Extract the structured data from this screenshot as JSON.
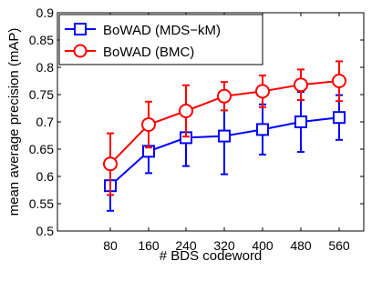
{
  "chart_data": {
    "type": "line",
    "title": "",
    "xlabel": "# BDS codeword",
    "ylabel": "mean average precision (mAP)",
    "categories": [
      "80",
      "160",
      "240",
      "320",
      "400",
      "480",
      "560"
    ],
    "ylim": [
      0.5,
      0.9
    ],
    "yticks": [
      "0.5",
      "0.55",
      "0.6",
      "0.65",
      "0.7",
      "0.75",
      "0.8",
      "0.85",
      "0.9"
    ],
    "grid": false,
    "legend_position": "top-left",
    "series": [
      {
        "name": "BoWAD (MDS−kM)",
        "color": "#0000ff",
        "marker": "square",
        "values": [
          0.583,
          0.646,
          0.671,
          0.674,
          0.686,
          0.7,
          0.708
        ],
        "err_low": [
          0.537,
          0.606,
          0.619,
          0.604,
          0.64,
          0.645,
          0.667
        ],
        "err_high": [
          0.629,
          0.686,
          0.723,
          0.744,
          0.732,
          0.755,
          0.749
        ]
      },
      {
        "name": "BoWAD (BMC)",
        "color": "#ff0000",
        "marker": "circle",
        "values": [
          0.623,
          0.695,
          0.72,
          0.747,
          0.756,
          0.768,
          0.775
        ],
        "err_low": [
          0.566,
          0.653,
          0.673,
          0.721,
          0.727,
          0.74,
          0.738
        ],
        "err_high": [
          0.679,
          0.737,
          0.767,
          0.773,
          0.785,
          0.796,
          0.811
        ]
      }
    ]
  }
}
